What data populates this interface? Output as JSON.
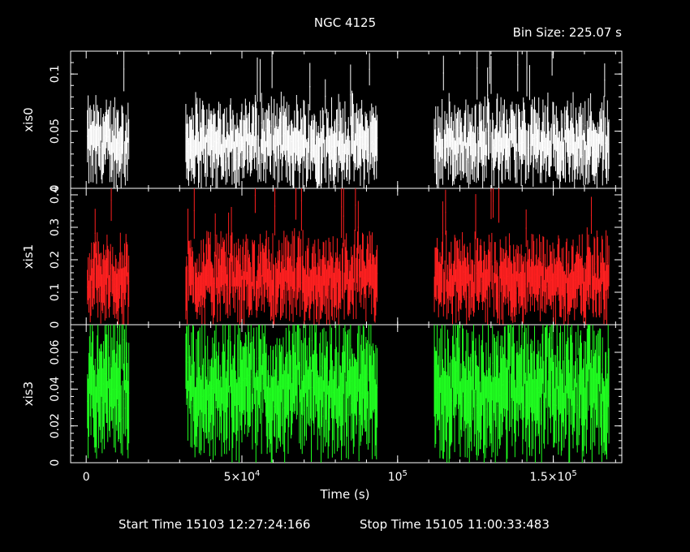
{
  "title": "NGC 4125",
  "bin_size_label": "Bin Size: 225.07 s",
  "footer": {
    "start": "Start Time 15103 12:27:24:166",
    "stop": "Stop Time 15105 11:00:33:483"
  },
  "chart_data": {
    "type": "scatter",
    "xlabel": "Time (s)",
    "x_unit": "s",
    "xlim": [
      -5000,
      172000
    ],
    "x_ticks": [
      {
        "value": 0,
        "label": "0",
        "sup": ""
      },
      {
        "value": 50000,
        "label": "5×10",
        "sup": "4"
      },
      {
        "value": 100000,
        "label": "10",
        "sup": "5"
      },
      {
        "value": 150000,
        "label": "1.5×10",
        "sup": "5"
      }
    ],
    "data_segments": [
      [
        400,
        13800
      ],
      [
        32000,
        93500
      ],
      [
        111800,
        168000
      ]
    ],
    "panels": [
      {
        "name": "xis0",
        "ylabel": "xis0",
        "color": "#ffffff",
        "ylim": [
          0,
          0.12
        ],
        "ticks": [
          {
            "v": 0,
            "l": "0"
          },
          {
            "v": 0.05,
            "l": "0.05"
          },
          {
            "v": 0.1,
            "l": "0.1"
          }
        ],
        "typical_rate": 0.04,
        "peak_rate": 0.12
      },
      {
        "name": "xis1",
        "ylabel": "xis1",
        "color": "#ff2020",
        "ylim": [
          0,
          0.42
        ],
        "ticks": [
          {
            "v": 0,
            "l": "0"
          },
          {
            "v": 0.1,
            "l": "0.1"
          },
          {
            "v": 0.2,
            "l": "0.2"
          },
          {
            "v": 0.3,
            "l": "0.3"
          },
          {
            "v": 0.4,
            "l": "0.4"
          }
        ],
        "typical_rate": 0.14,
        "peak_rate": 0.4
      },
      {
        "name": "xis3",
        "ylabel": "xis3",
        "color": "#20ff20",
        "ylim": [
          0,
          0.075
        ],
        "ticks": [
          {
            "v": 0,
            "l": "0"
          },
          {
            "v": 0.02,
            "l": "0.02"
          },
          {
            "v": 0.04,
            "l": "0.04"
          },
          {
            "v": 0.06,
            "l": "0.06"
          }
        ],
        "typical_rate": 0.04,
        "peak_rate": 0.075
      }
    ]
  }
}
